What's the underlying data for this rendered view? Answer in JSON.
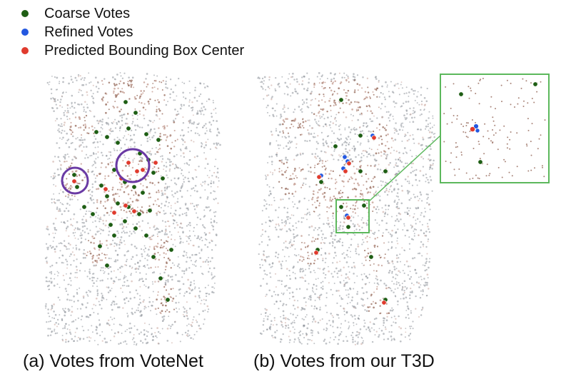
{
  "legend": {
    "items": [
      {
        "label": "Coarse Votes",
        "color": "#1e5e14"
      },
      {
        "label": "Refined Votes",
        "color": "#2458e0"
      },
      {
        "label": "Predicted Bounding Box Center",
        "color": "#e03b2e"
      }
    ]
  },
  "panels": [
    {
      "caption": "(a) Votes from VoteNet"
    },
    {
      "caption": "(b) Votes from our T3D"
    }
  ],
  "colors": {
    "highlight_circle": "#6a3aa4",
    "zoom_box": "#5cb85c",
    "points_grey": "#8a8f98",
    "points_brown": "#a0786a",
    "points_skin": "#c9a49a"
  }
}
